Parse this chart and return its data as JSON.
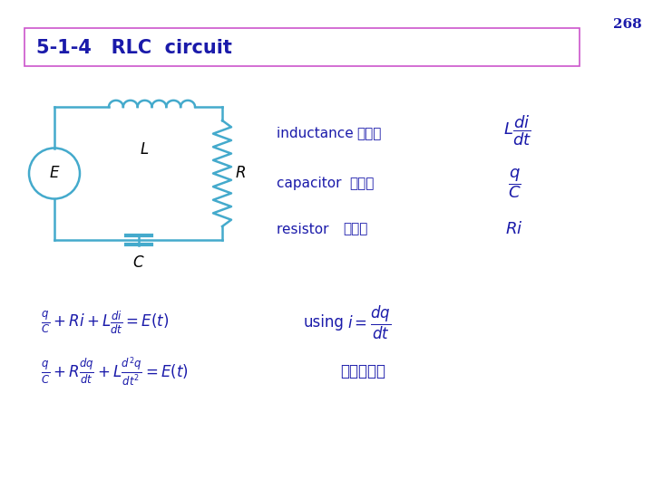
{
  "page_num": "268",
  "title": "5-1-4   RLC  circuit",
  "title_color": "#1a1aaa",
  "title_box_color": "#cc55cc",
  "background_color": "#ffffff",
  "circuit_color": "#44aacc",
  "text_color": "#1a1aaa",
  "page_num_color": "#1a1aaa",
  "inductance_label_en": "inductance ",
  "inductance_label_zh": "的電壓",
  "capacitor_label_en": "capacitor  ",
  "capacitor_label_zh": "的電壓",
  "resistor_label_en": "resistor   ",
  "resistor_label_zh": "的電壓",
  "eq2_note_zh": "一定可以解",
  "using_text": "using"
}
